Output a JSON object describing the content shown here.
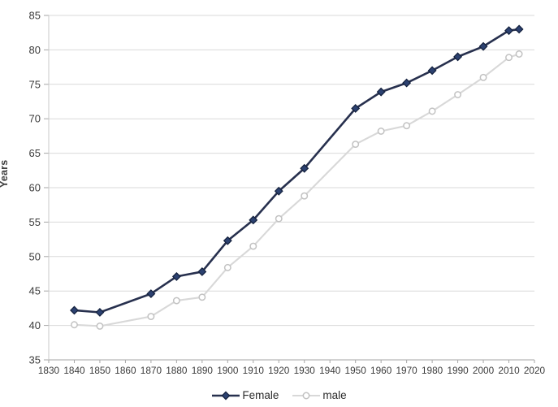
{
  "chart_data": {
    "type": "line",
    "title": "",
    "xlabel": "",
    "ylabel": "Years",
    "xlim": [
      1830,
      2020
    ],
    "ylim": [
      35,
      85
    ],
    "grid": "horizontal",
    "legend_position": "bottom",
    "x_ticks": [
      "1830",
      "1840",
      "1850",
      "1860",
      "1870",
      "1880",
      "1890",
      "1900",
      "1910",
      "1920",
      "1930",
      "1940",
      "1950",
      "1960",
      "1970",
      "1980",
      "1990",
      "2000",
      "2010",
      "2020"
    ],
    "y_ticks": [
      "35",
      "40",
      "45",
      "50",
      "55",
      "60",
      "65",
      "70",
      "75",
      "80",
      "85"
    ],
    "x": [
      1840,
      1850,
      1870,
      1880,
      1890,
      1900,
      1910,
      1920,
      1930,
      1950,
      1960,
      1970,
      1980,
      1990,
      2000,
      2010,
      2014
    ],
    "series": [
      {
        "name": "Female",
        "marker": "diamond",
        "line_color": "#27304e",
        "line_width": 2.6,
        "marker_fill": "#2c4170",
        "marker_stroke": "#13203c",
        "marker_size": 4.6,
        "values": [
          42.2,
          41.9,
          44.6,
          47.1,
          47.8,
          52.3,
          55.3,
          59.5,
          62.8,
          71.5,
          73.9,
          75.2,
          77.0,
          79.0,
          80.5,
          82.8,
          83.0
        ]
      },
      {
        "name": "male",
        "marker": "circle",
        "line_color": "#d8d8d8",
        "line_width": 2.1,
        "marker_fill": "#ffffff",
        "marker_stroke": "#c2c2c2",
        "marker_size": 3.7,
        "values": [
          40.1,
          39.9,
          41.3,
          43.6,
          44.1,
          48.4,
          51.5,
          55.5,
          58.8,
          66.3,
          68.2,
          69.0,
          71.1,
          73.5,
          76.0,
          78.9,
          79.4
        ]
      }
    ]
  },
  "colors": {
    "background": "#ffffff",
    "gridline": "#d9d9d9",
    "axis_line": "#a6a6a6",
    "y_axis_line": "#c9c9c9",
    "tick_text": "#3b3b3b"
  }
}
